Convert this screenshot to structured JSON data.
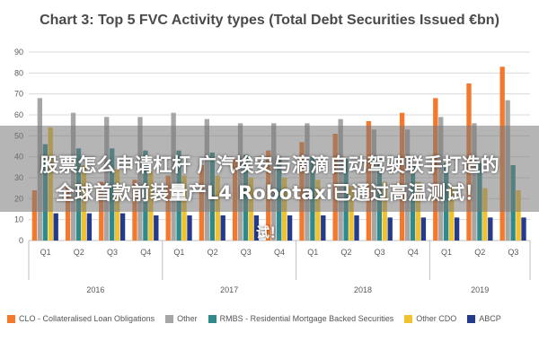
{
  "overlay": {
    "line1": "股票怎么申请杠杆 广汽埃安与滴滴自动驾驶联手打造的",
    "line2": "全球首款前装量产L4 Robotaxi已通过高温测试！",
    "line3": "试！"
  },
  "chart_data": {
    "type": "bar",
    "title": "Chart 3: Top 5 FVC Activity types (Total Debt Securities Issued €bn)",
    "xlabel": "",
    "ylabel": "",
    "ylim": [
      0,
      90
    ],
    "yticks": [
      "0",
      "10",
      "20",
      "30",
      "40",
      "50",
      "60",
      "70",
      "80",
      "90"
    ],
    "categories": [
      "Q1",
      "Q2",
      "Q3",
      "Q4",
      "Q1",
      "Q2",
      "Q3",
      "Q4",
      "Q1",
      "Q2",
      "Q3",
      "Q4",
      "Q1",
      "Q2",
      "Q3"
    ],
    "year_groups": [
      {
        "label": "2016",
        "count": 4
      },
      {
        "label": "2017",
        "count": 4
      },
      {
        "label": "2018",
        "count": 4
      },
      {
        "label": "2019",
        "count": 3
      }
    ],
    "grid": true,
    "legend_position": "bottom",
    "series": [
      {
        "name": "CLO - Collateralised Loan Obligations",
        "color": "#f4792d",
        "values": [
          24,
          26,
          28,
          29,
          31,
          36,
          39,
          43,
          47,
          51,
          57,
          61,
          68,
          75,
          83
        ]
      },
      {
        "name": "Other",
        "color": "#a6a6a6",
        "values": [
          68,
          61,
          59,
          59,
          61,
          58,
          56,
          56,
          56,
          58,
          53,
          53,
          59,
          56,
          67
        ]
      },
      {
        "name": "RMBS - Residential Mortgage Backed Securities",
        "color": "#2f8a8c",
        "values": [
          46,
          44,
          44,
          43,
          43,
          42,
          41,
          40,
          40,
          39,
          39,
          36,
          37,
          37,
          36
        ]
      },
      {
        "name": "Other CDO",
        "color": "#f2c12e",
        "values": [
          54,
          36,
          34,
          33,
          31,
          31,
          30,
          30,
          29,
          26,
          28,
          28,
          26,
          25,
          24
        ]
      },
      {
        "name": "ABCP",
        "color": "#243a8c",
        "values": [
          13,
          13,
          13,
          12,
          12,
          12,
          12,
          12,
          12,
          12,
          11,
          11,
          11,
          11,
          11
        ]
      }
    ]
  }
}
